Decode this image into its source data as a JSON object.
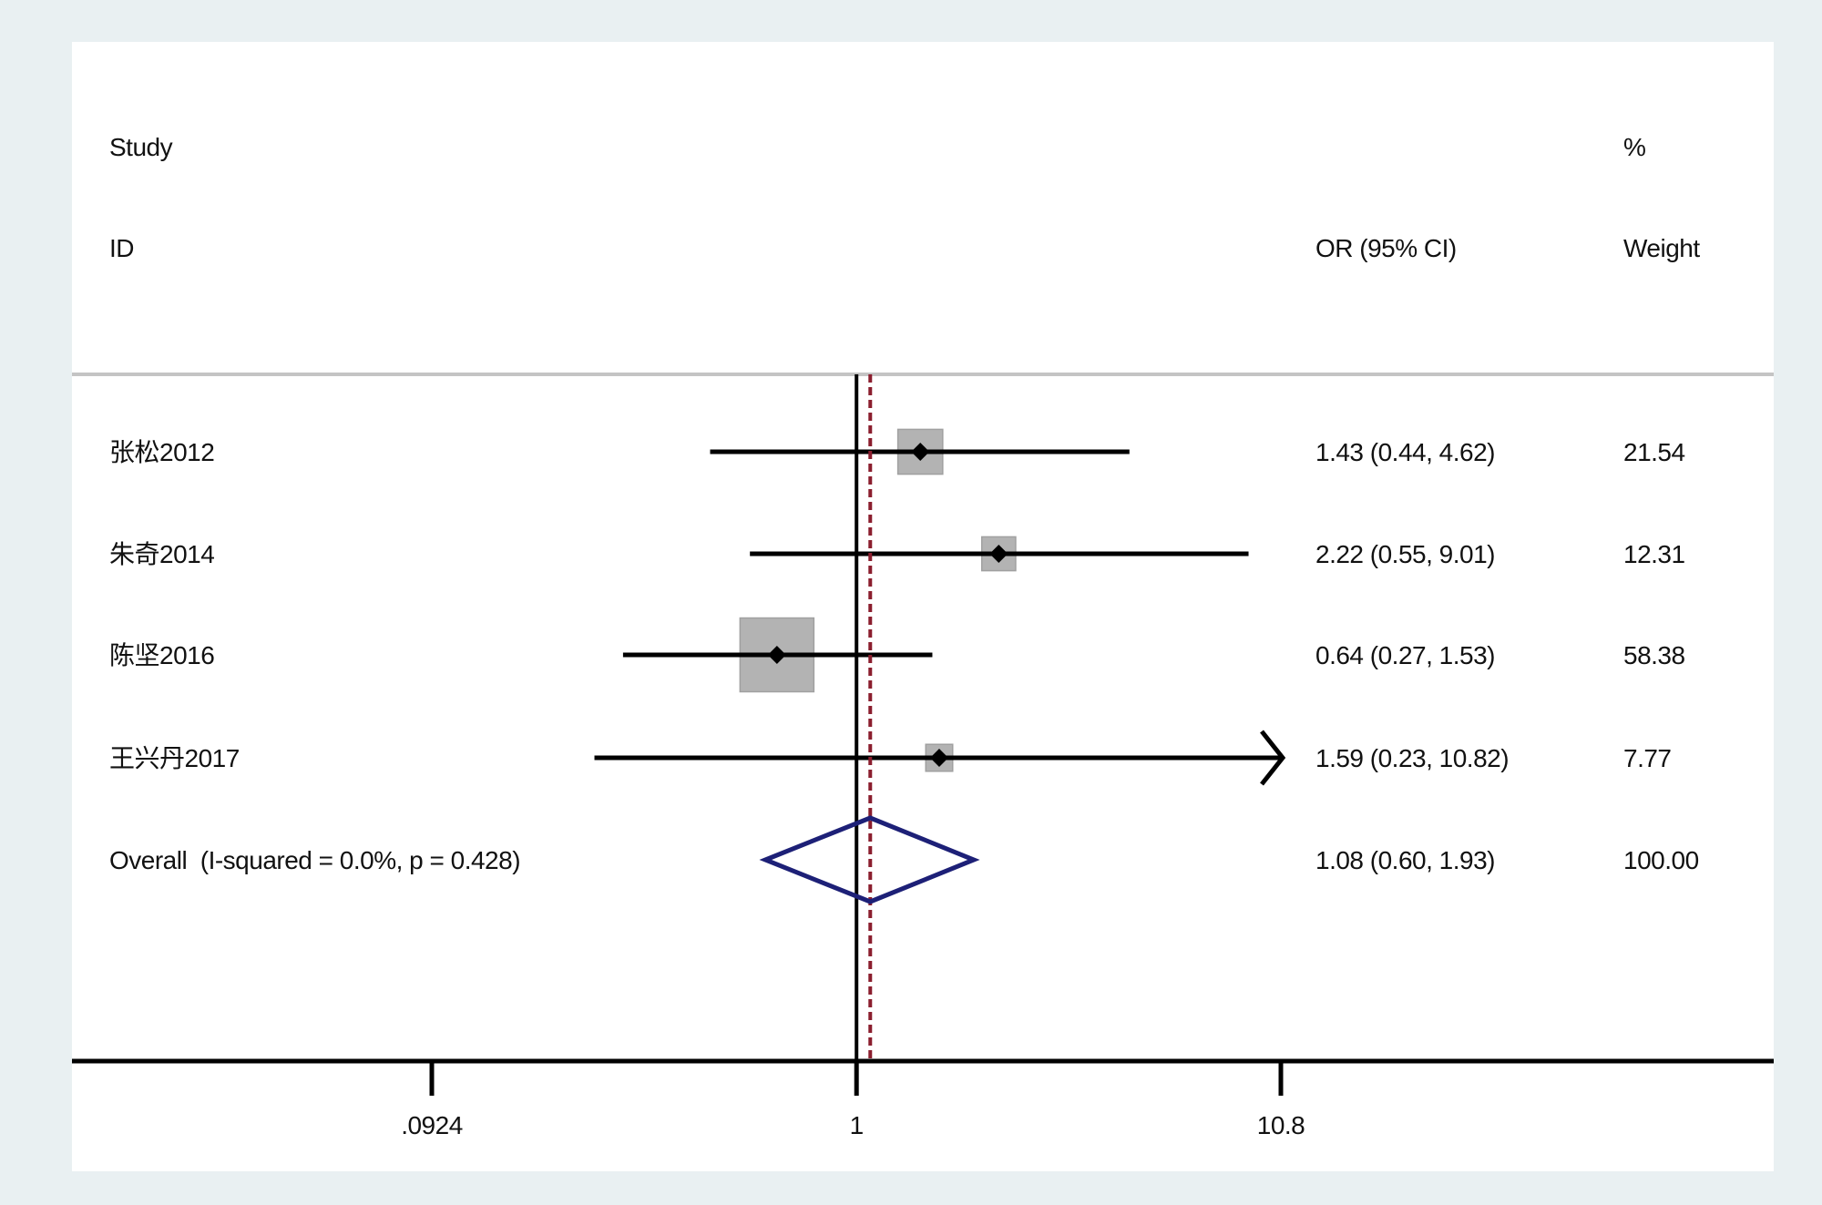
{
  "colors": {
    "background": "#e9f0f2",
    "panel": "#ffffff",
    "text": "#111111",
    "separator": "#c4c4c4",
    "ci_line": "#000000",
    "weight_box": "#b3b3b3",
    "weight_box_edge": "#a0a0a0",
    "point_marker": "#000000",
    "null_line": "#000000",
    "overall_line": "#8b1e2e",
    "overall_diamond": "#1d2077",
    "axis": "#000000"
  },
  "chart_data": {
    "type": "scatter",
    "x_scale": "log",
    "xlim": [
      0.0924,
      10.8
    ],
    "x_ticks": [
      {
        "value": 0.0924,
        "label": ".0924"
      },
      {
        "value": 1,
        "label": "1"
      },
      {
        "value": 10.8,
        "label": "10.8"
      }
    ],
    "null_value": 1,
    "columns": {
      "study": [
        "Study",
        "ID"
      ],
      "effect": "OR (95% CI)",
      "weight": [
        "%",
        "Weight"
      ]
    },
    "studies": [
      {
        "id": "张松2012",
        "or": 1.43,
        "ci_low": 0.44,
        "ci_high": 4.62,
        "or_ci": "1.43 (0.44, 4.62)",
        "weight": 21.54,
        "weight_label": "21.54"
      },
      {
        "id": "朱奇2014",
        "or": 2.22,
        "ci_low": 0.55,
        "ci_high": 9.01,
        "or_ci": "2.22 (0.55, 9.01)",
        "weight": 12.31,
        "weight_label": "12.31"
      },
      {
        "id": "陈坚2016",
        "or": 0.64,
        "ci_low": 0.27,
        "ci_high": 1.53,
        "or_ci": "0.64 (0.27, 1.53)",
        "weight": 58.38,
        "weight_label": "58.38"
      },
      {
        "id": "王兴丹2017",
        "or": 1.59,
        "ci_low": 0.23,
        "ci_high": 10.82,
        "or_ci": "1.59 (0.23, 10.82)",
        "weight": 7.77,
        "weight_label": "7.77"
      }
    ],
    "overall": {
      "label": "Overall  (I-squared = 0.0%, p = 0.428)",
      "or": 1.08,
      "ci_low": 0.6,
      "ci_high": 1.93,
      "or_ci": "1.08 (0.60, 1.93)",
      "weight_label": "100.00"
    }
  }
}
